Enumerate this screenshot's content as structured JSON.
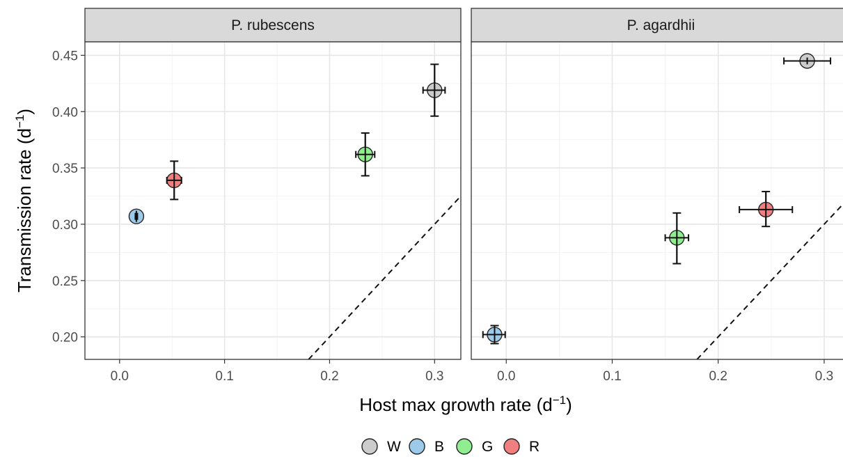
{
  "chart_data": {
    "type": "scatter",
    "xlabel": "Host max growth rate (d",
    "xlabel_sup": "−1",
    "xlabel_close": ")",
    "ylabel": "Transmission rate (d",
    "ylabel_sup": "−1",
    "ylabel_close": ")",
    "xlim": [
      -0.033,
      0.325
    ],
    "ylim": [
      0.18,
      0.462
    ],
    "x_ticks": [
      0.0,
      0.1,
      0.2,
      0.3
    ],
    "x_tick_labels": [
      "0.0",
      "0.1",
      "0.2",
      "0.3"
    ],
    "y_ticks": [
      0.2,
      0.25,
      0.3,
      0.35,
      0.4,
      0.45
    ],
    "y_tick_labels": [
      "0.20",
      "0.25",
      "0.30",
      "0.35",
      "0.40",
      "0.45"
    ],
    "grid": true,
    "legend_placement": "bottom",
    "legend": [
      {
        "label": "W",
        "color": "#cccccc"
      },
      {
        "label": "B",
        "color": "#9ecae9"
      },
      {
        "label": "G",
        "color": "#90ee90"
      },
      {
        "label": "R",
        "color": "#f08080"
      }
    ],
    "reference_line": {
      "style": "dashed",
      "points": [
        [
          0.18,
          0.18
        ],
        [
          0.325,
          0.325
        ]
      ]
    },
    "panels": [
      {
        "title": "P. rubescens",
        "points": [
          {
            "group": "W",
            "x": 0.3,
            "x_lo": 0.289,
            "x_hi": 0.31,
            "y": 0.419,
            "y_lo": 0.396,
            "y_hi": 0.442
          },
          {
            "group": "B",
            "x": 0.016,
            "x_lo": 0.015,
            "x_hi": 0.017,
            "y": 0.307,
            "y_lo": 0.302,
            "y_hi": 0.312
          },
          {
            "group": "G",
            "x": 0.234,
            "x_lo": 0.225,
            "x_hi": 0.243,
            "y": 0.362,
            "y_lo": 0.343,
            "y_hi": 0.381
          },
          {
            "group": "R",
            "x": 0.052,
            "x_lo": 0.045,
            "x_hi": 0.059,
            "y": 0.339,
            "y_lo": 0.322,
            "y_hi": 0.356
          }
        ]
      },
      {
        "title": "P. agardhii",
        "points": [
          {
            "group": "W",
            "x": 0.284,
            "x_lo": 0.262,
            "x_hi": 0.306,
            "y": 0.445,
            "y_lo": 0.442,
            "y_hi": 0.448
          },
          {
            "group": "B",
            "x": -0.011,
            "x_lo": -0.022,
            "x_hi": -0.001,
            "y": 0.202,
            "y_lo": 0.194,
            "y_hi": 0.21
          },
          {
            "group": "G",
            "x": 0.161,
            "x_lo": 0.15,
            "x_hi": 0.172,
            "y": 0.288,
            "y_lo": 0.265,
            "y_hi": 0.31
          },
          {
            "group": "R",
            "x": 0.245,
            "x_lo": 0.22,
            "x_hi": 0.27,
            "y": 0.313,
            "y_lo": 0.298,
            "y_hi": 0.329
          }
        ]
      }
    ]
  }
}
